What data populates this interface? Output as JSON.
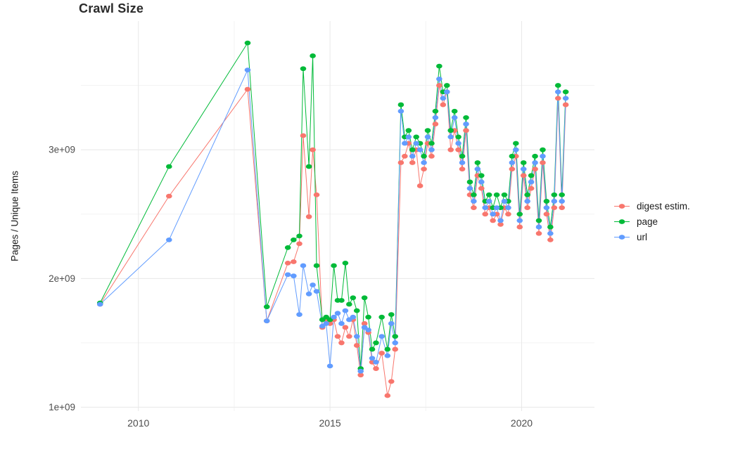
{
  "title": "Crawl Size",
  "chart_data": {
    "type": "line",
    "title": "Crawl Size",
    "xlabel": "",
    "ylabel": "Pages / Unique Items",
    "legend_position": "right",
    "grid": true,
    "xlim": [
      2008.5,
      2021.9
    ],
    "ylim": [
      0.97,
      4.0
    ],
    "y_values_unit": "1e+09",
    "x_ticks": [
      2010,
      2015,
      2020
    ],
    "x_tick_labels": [
      "2010",
      "2015",
      "2020"
    ],
    "x_minor_ticks": [
      2012.5,
      2017.5
    ],
    "y_ticks": [
      1,
      2,
      3
    ],
    "y_tick_labels": [
      "1e+09",
      "2e+09",
      "3e+09"
    ],
    "y_minor_ticks": [
      1.5,
      2.5,
      3.5
    ],
    "x": [
      2009.0,
      2010.8,
      2012.85,
      2013.35,
      2013.9,
      2014.05,
      2014.2,
      2014.3,
      2014.45,
      2014.55,
      2014.65,
      2014.8,
      2014.9,
      2015.0,
      2015.1,
      2015.2,
      2015.3,
      2015.4,
      2015.5,
      2015.6,
      2015.7,
      2015.8,
      2015.9,
      2016.0,
      2016.1,
      2016.2,
      2016.35,
      2016.5,
      2016.6,
      2016.7,
      2016.85,
      2016.95,
      2017.05,
      2017.15,
      2017.25,
      2017.35,
      2017.45,
      2017.55,
      2017.65,
      2017.75,
      2017.85,
      2017.95,
      2018.05,
      2018.15,
      2018.25,
      2018.35,
      2018.45,
      2018.55,
      2018.65,
      2018.75,
      2018.85,
      2018.95,
      2019.05,
      2019.15,
      2019.25,
      2019.35,
      2019.45,
      2019.55,
      2019.65,
      2019.75,
      2019.85,
      2019.95,
      2020.05,
      2020.15,
      2020.25,
      2020.35,
      2020.45,
      2020.55,
      2020.65,
      2020.75,
      2020.85,
      2020.95,
      2021.05,
      2021.15
    ],
    "series": [
      {
        "name": "digest estim.",
        "color": "#F8766D",
        "y": [
          1.8,
          2.64,
          3.47,
          1.67,
          2.12,
          2.13,
          2.27,
          3.11,
          2.48,
          3.0,
          2.65,
          1.62,
          1.68,
          1.65,
          1.68,
          1.55,
          1.5,
          1.62,
          1.55,
          1.68,
          1.48,
          1.25,
          1.65,
          1.58,
          1.35,
          1.3,
          1.42,
          1.09,
          1.2,
          1.45,
          2.9,
          2.95,
          3.05,
          2.9,
          3.0,
          2.72,
          2.85,
          3.05,
          2.95,
          3.2,
          3.5,
          3.35,
          3.45,
          3.0,
          3.15,
          3.0,
          2.85,
          3.15,
          2.65,
          2.55,
          2.8,
          2.7,
          2.5,
          2.55,
          2.45,
          2.5,
          2.42,
          2.55,
          2.5,
          2.85,
          2.95,
          2.4,
          2.8,
          2.55,
          2.7,
          2.85,
          2.35,
          2.9,
          2.5,
          2.3,
          2.55,
          3.4,
          2.55,
          3.35
        ]
      },
      {
        "name": "page",
        "color": "#00BA38",
        "y": [
          1.81,
          2.87,
          3.83,
          1.78,
          2.24,
          2.3,
          2.33,
          3.63,
          2.87,
          3.73,
          2.1,
          1.68,
          1.7,
          1.68,
          2.1,
          1.83,
          1.83,
          2.12,
          1.8,
          1.85,
          1.75,
          1.3,
          1.85,
          1.7,
          1.45,
          1.5,
          1.7,
          1.45,
          1.72,
          1.55,
          3.35,
          3.1,
          3.15,
          3.0,
          3.1,
          3.05,
          2.95,
          3.15,
          3.05,
          3.3,
          3.65,
          3.45,
          3.5,
          3.15,
          3.3,
          3.1,
          2.95,
          3.25,
          2.75,
          2.65,
          2.9,
          2.8,
          2.6,
          2.65,
          2.55,
          2.65,
          2.55,
          2.65,
          2.6,
          2.95,
          3.05,
          2.5,
          2.9,
          2.65,
          2.8,
          2.95,
          2.45,
          3.0,
          2.6,
          2.4,
          2.65,
          3.5,
          2.65,
          3.45
        ]
      },
      {
        "name": "url",
        "color": "#619CFF",
        "y": [
          1.8,
          2.3,
          3.62,
          1.67,
          2.03,
          2.02,
          1.72,
          2.1,
          1.88,
          1.95,
          1.9,
          1.63,
          1.65,
          1.32,
          1.7,
          1.73,
          1.65,
          1.75,
          1.68,
          1.7,
          1.55,
          1.28,
          1.62,
          1.6,
          1.38,
          1.35,
          1.55,
          1.4,
          1.65,
          1.5,
          3.3,
          3.05,
          3.1,
          2.95,
          3.05,
          3.0,
          2.9,
          3.1,
          3.0,
          3.25,
          3.55,
          3.4,
          3.45,
          3.1,
          3.25,
          3.05,
          2.9,
          3.2,
          2.7,
          2.6,
          2.85,
          2.75,
          2.55,
          2.6,
          2.5,
          2.55,
          2.45,
          2.6,
          2.55,
          2.9,
          3.0,
          2.45,
          2.85,
          2.6,
          2.75,
          2.9,
          2.4,
          2.95,
          2.55,
          2.35,
          2.6,
          3.45,
          2.6,
          3.4
        ]
      }
    ]
  }
}
